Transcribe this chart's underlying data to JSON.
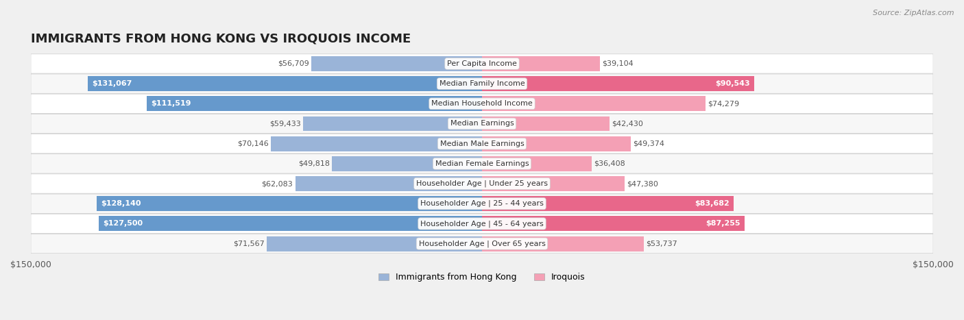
{
  "title": "IMMIGRANTS FROM HONG KONG VS IROQUOIS INCOME",
  "source": "Source: ZipAtlas.com",
  "categories": [
    "Per Capita Income",
    "Median Family Income",
    "Median Household Income",
    "Median Earnings",
    "Median Male Earnings",
    "Median Female Earnings",
    "Householder Age | Under 25 years",
    "Householder Age | 25 - 44 years",
    "Householder Age | 45 - 64 years",
    "Householder Age | Over 65 years"
  ],
  "hk_values": [
    56709,
    131067,
    111519,
    59433,
    70146,
    49818,
    62083,
    128140,
    127500,
    71567
  ],
  "iro_values": [
    39104,
    90543,
    74279,
    42430,
    49374,
    36408,
    47380,
    83682,
    87255,
    53737
  ],
  "hk_color": "#9ab4d8",
  "hk_color_strong": "#6699cc",
  "iro_color": "#f4a0b5",
  "iro_color_strong": "#e8678a",
  "max_val": 150000,
  "hk_label": "Immigrants from Hong Kong",
  "iro_label": "Iroquois",
  "background_color": "#f5f5f5",
  "row_bg_light": "#ffffff",
  "row_bg_dark": "#eeeeee"
}
